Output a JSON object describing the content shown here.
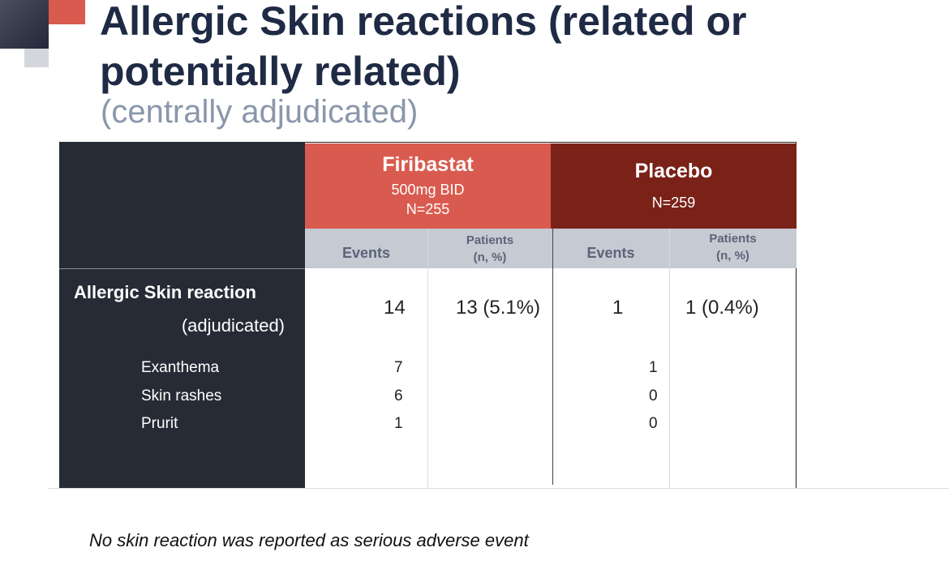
{
  "header": {
    "title_lines": [
      "Allergic Skin reactions (related or",
      "potentially related)"
    ],
    "subtitle": "(centrally adjudicated)"
  },
  "table": {
    "groups": [
      {
        "name": "Firibastat",
        "lines": [
          "500mg BID",
          "N=255"
        ]
      },
      {
        "name": "Placebo",
        "lines": [
          "N=259"
        ]
      }
    ],
    "columns": [
      [
        "Events"
      ],
      [
        "Patients",
        "(n, %)"
      ],
      [
        "Events"
      ],
      [
        "Patients",
        "(n, %)"
      ]
    ],
    "main_row": {
      "label": "Allergic Skin reaction",
      "sublabel": "(adjudicated)",
      "cells": [
        "14",
        "13 (5.1%)",
        "1",
        "1 (0.4%)"
      ]
    },
    "sub_rows": [
      {
        "label": "Exanthema",
        "firibastat_events": 7,
        "placebo_events": 1
      },
      {
        "label": "Skin rashes",
        "firibastat_events": 6,
        "placebo_events": 0
      },
      {
        "label": "Prurit",
        "firibastat_events": 1,
        "placebo_events": 0
      }
    ]
  },
  "footnote": "No skin reaction was reported as serious adverse event"
}
